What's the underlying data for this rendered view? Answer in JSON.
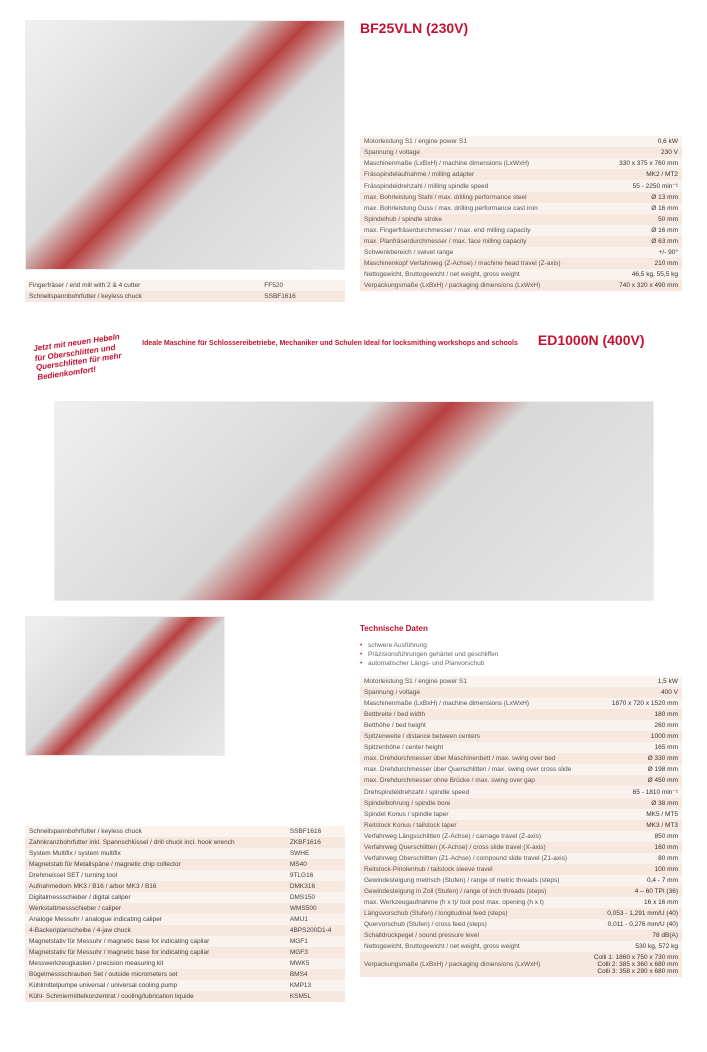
{
  "colors": {
    "accent": "#c41230",
    "row_odd": "#faf2ed",
    "row_even": "#f6e8df",
    "text": "#333333"
  },
  "product1": {
    "title": "BF25VLN (230V)",
    "specs": [
      [
        "Motorleistung S1 / engine power S1",
        "0,6 kW"
      ],
      [
        "Spannung / voltage",
        "230 V"
      ],
      [
        "Maschinenmaße (LxBxH) / machine dimensions (LxWxH)",
        "330 x 375 x 760 mm"
      ],
      [
        "Frässpindelaufnahme / milling adapter",
        "MK2 / MT2"
      ],
      [
        "Frässpindeldrehzahl / milling spindle speed",
        "55 - 2250 min⁻¹"
      ],
      [
        "max. Bohrleistung Stahl / max. drilling performance steel",
        "Ø 13 mm"
      ],
      [
        "max. Bohrleistung Guss / max. drilling performance cast iron",
        "Ø 16 mm"
      ],
      [
        "Spindelhub / spindle stroke",
        "50 mm"
      ],
      [
        "max. Fingerfräserdurchmesser / max. end milling capacity",
        "Ø 16 mm"
      ],
      [
        "max. Planfräserdurchmesser / max. face milling capacity",
        "Ø 63 mm"
      ],
      [
        "Schwenkbereich / swivel range",
        "+/- 90°"
      ],
      [
        "Maschinenkopf Verfahrweg (Z-Achse) / machine head travel (Z-axis)",
        "210 mm"
      ],
      [
        "Nettogewicht, Bruttogewicht / net weight, gross weight",
        "46,5 kg, 55,5 kg"
      ],
      [
        "Verpackungsmaße (LxBxH) / packaging dimensions (LxWxH)",
        "740 x 320 x 490 mm"
      ]
    ],
    "accessories": [
      [
        "Fingerfräser / end mill with 2 & 4 cutter",
        "FF520"
      ],
      [
        "Schnellspannbohrfutter / keyless chuck",
        "SSBF1616"
      ]
    ]
  },
  "product2": {
    "title": "ED1000N (400V)",
    "stamp_lines": [
      "Jetzt mit neuen Hebeln",
      "für Oberschlitten und",
      "Querschlitten für mehr",
      "Bedienkomfort!"
    ],
    "subtitle": "Ideale Maschine für Schlossereibetriebe, Mechaniker und Schulen Ideal for locksmithing workshops and schools",
    "feature_title": "Technische Daten",
    "specs": [
      [
        "Motorleistung S1 / engine power S1",
        "1,5 kW"
      ],
      [
        "Spannung / voltage",
        "400 V"
      ],
      [
        "Maschinenmaße (LxBxH) / machine dimensions (LxWxH)",
        "1870 x 720 x 1520 mm"
      ],
      [
        "Bettbreite / bed width",
        "180 mm"
      ],
      [
        "Betthöhe / bed height",
        "260 mm"
      ],
      [
        "Spitzenweite / distance between centers",
        "1000 mm"
      ],
      [
        "Spitzenhöhe / center height",
        "165 mm"
      ],
      [
        "max. Drehdurchmesser über Maschinenbett / max. swing over bed",
        "Ø 330 mm"
      ],
      [
        "max. Drehdurchmesser über Querschlitten / max. swing over cross slide",
        "Ø 198 mm"
      ],
      [
        "max. Drehdurchmesser ohne Brücke / max. swing over gap",
        "Ø 450 mm"
      ],
      [
        "Drehspindeldrehzahl / spindle speed",
        "65 - 1810 min⁻¹"
      ],
      [
        "Spindelbohrung / spindle bore",
        "Ø 38 mm"
      ],
      [
        "Spindel Konus / spindle taper",
        "MK5 / MT5"
      ],
      [
        "Reitstock Konus / tailstock taper",
        "MK3 / MT3"
      ],
      [
        "Verfahrweg Längsschlitten (Z-Achse) / carriage travel (Z-axis)",
        "850 mm"
      ],
      [
        "Verfahrweg Querschlitten (X-Achse) / cross slide travel (X-axis)",
        "160 mm"
      ],
      [
        "Verfahrweg Oberschlitten (Z1-Achse) / compound slide travel (Z1-axis)",
        "80 mm"
      ],
      [
        "Reitstock-Pinolenhub / tailstock sleeve travel",
        "100 mm"
      ],
      [
        "Gewindesteigung metrisch (Stufen) / range of metric threads (steps)",
        "0,4 - 7 mm"
      ],
      [
        "Gewindesteigung in Zoll (Stufen) / range of inch threads (steps)",
        "4 – 60 TPI (36)"
      ],
      [
        "max. Werkzeugaufnahme (h x t)/ tool post max. opening (h x t)",
        "16 x 16 mm"
      ],
      [
        "Längsvorschub (Stufen) / longitudinal feed (steps)",
        "0,053 - 1,291 mm/U (40)"
      ],
      [
        "Quervorschub (Stufen) / cross feed (steps)",
        "0,011 - 0,276 mm/U (40)"
      ],
      [
        "Schalldruckpegel / sound pressure level",
        "78 dB(A)"
      ],
      [
        "Nettogewicht, Bruttogewicht / net weight, gross weight",
        "530 kg, 572 kg"
      ],
      [
        "Verpackungsmaße (LxBxH) / packaging dimensions (LxWxH)",
        "Colli 1: 1860 x 750 x 730 mm\nColli 2: 385 x 360 x 680 mm\nColli 3: 358 x 290 x 680 mm"
      ]
    ],
    "accessories": [
      [
        "Schnellspannbohrfutter / keyless chuck",
        "SSBF1616"
      ],
      [
        "Zahnkranzbohrfutter inkl. Spannschlüssel / drill chuck incl. hook wrench",
        "ZKBF1616"
      ],
      [
        "System Multifix / system multifix",
        "SWHE"
      ],
      [
        "Magnetstab für Metallspäne / magnetic chip collector",
        "MS40"
      ],
      [
        "Drehmeissel SET / turning tool",
        "9TLG16"
      ],
      [
        "Aufnahmedorn MK3 / B16 / arbor MK3 / B16",
        "DMK316"
      ],
      [
        "Digitalmessschieber / digital caliper",
        "DMS150"
      ],
      [
        "Werkstattmessschieber / caliper",
        "WMS500"
      ],
      [
        "Analoge Messuhr / analogue indicating caliper",
        "AMU1"
      ],
      [
        "4-Backenplanscheibe / 4-jaw chuck",
        "4BPS200D1-4"
      ],
      [
        "Magnetstativ für Messuhr / magnetic base for indicating capilar",
        "MGF1"
      ],
      [
        "Magnetstativ für Messuhr / magnetic base for indicating capilar",
        "MGF3"
      ],
      [
        "Messwerkzeugkasten / precision measuring kit",
        "MWK5"
      ],
      [
        "Bügelmessschrauben Set / outside micrometers set",
        "BMS4"
      ],
      [
        "Kühlmittelpumpe universal / universal cooling pump",
        "KMP13"
      ],
      [
        "Kühl- Schmiermittelkonzentrat / cooling/lubrication liquide",
        "KSM5L"
      ]
    ]
  }
}
